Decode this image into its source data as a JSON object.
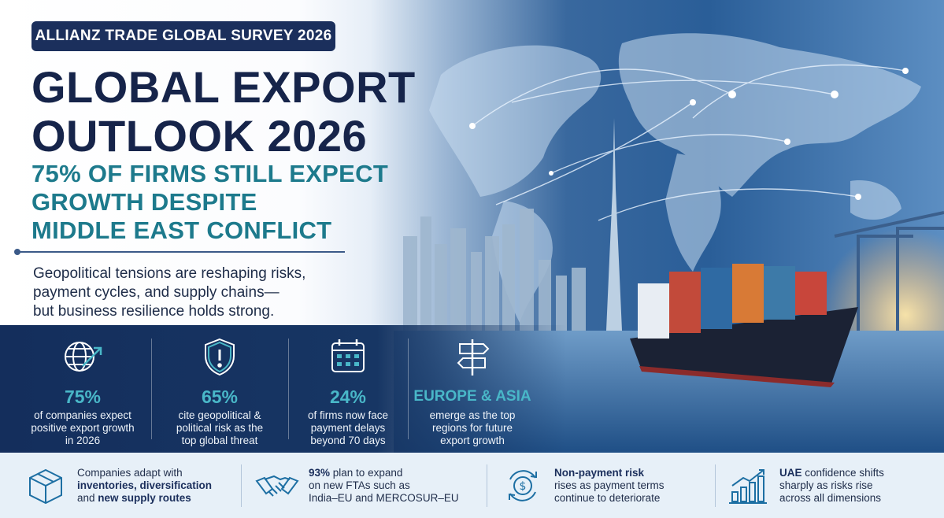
{
  "header": {
    "survey_badge": "ALLIANZ TRADE GLOBAL SURVEY 2026",
    "title_line1": "GLOBAL EXPORT",
    "title_line2": "OUTLOOK 2026",
    "subtitle_line1": "75% OF FIRMS STILL EXPECT",
    "subtitle_line2": "GROWTH DESPITE",
    "subtitle_line3": "MIDDLE EAST CONFLICT",
    "tagline_line1": "Geopolitical tensions are reshaping risks,",
    "tagline_line2": "payment cycles, and supply chains—",
    "tagline_line3": "but business resilience holds strong."
  },
  "stats": [
    {
      "icon": "globe-growth-icon",
      "value": "75%",
      "desc1": "of companies expect",
      "desc2": "positive export growth",
      "desc3": "in 2026"
    },
    {
      "icon": "shield-alert-icon",
      "value": "65%",
      "desc1": "cite geopolitical &",
      "desc2": "political risk as the",
      "desc3": "top global threat"
    },
    {
      "icon": "calendar-icon",
      "value": "24%",
      "desc1": "of firms now face",
      "desc2": "payment delays",
      "desc3": "beyond 70 days"
    },
    {
      "icon": "signpost-icon",
      "value": "EUROPE & ASIA",
      "desc1": "emerge as the top",
      "desc2": "regions for future",
      "desc3": "export growth"
    }
  ],
  "bottom": [
    {
      "icon": "box-icon",
      "line1": "Companies adapt with",
      "bold2": "inventories, diversification",
      "pre3": "and ",
      "bold3": "new supply routes"
    },
    {
      "icon": "handshake-icon",
      "bold1": "93%",
      "rest1": " plan to expand",
      "line2": "on new FTAs such as",
      "line3": "India–EU and MERCOSUR–EU"
    },
    {
      "icon": "dollar-cycle-icon",
      "bold1": "Non-payment risk",
      "line2": "rises as payment terms",
      "line3": "continue to deteriorate"
    },
    {
      "icon": "bar-growth-icon",
      "bold1": "UAE",
      "rest1": " confidence shifts",
      "line2": "sharply as risks rise",
      "line3": "across all dimensions"
    }
  ],
  "colors": {
    "navy": "#16244a",
    "teal": "#1d7a8c",
    "stat_value": "#49b7c8",
    "band": "#173664",
    "strip": "#e7f0f8"
  }
}
